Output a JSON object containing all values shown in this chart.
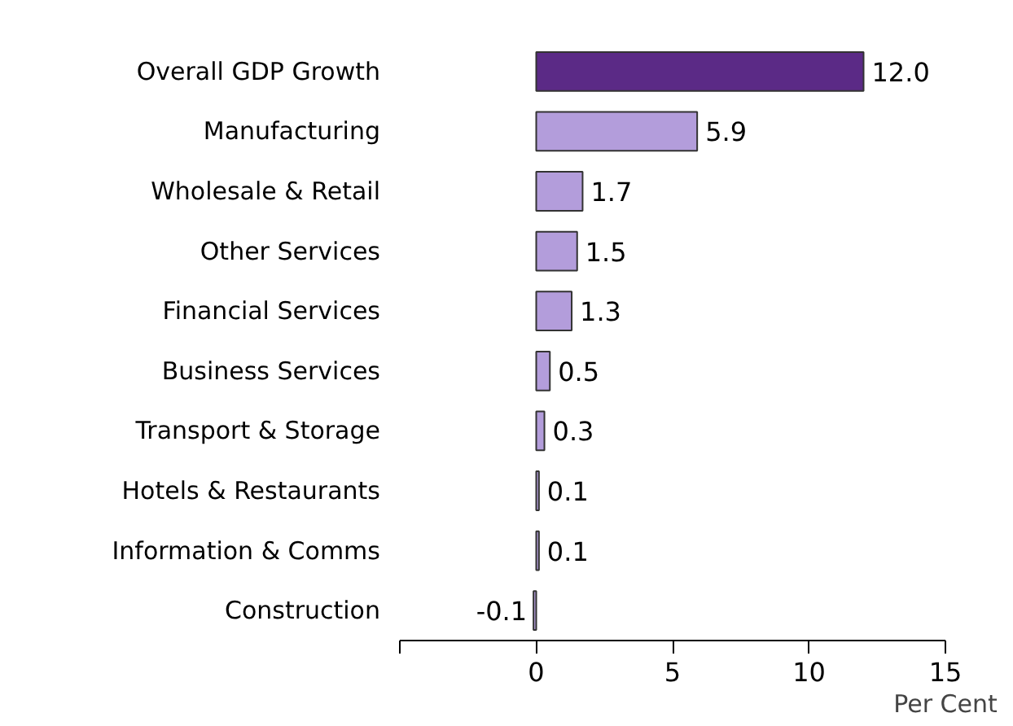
{
  "chart_data": {
    "type": "bar",
    "orientation": "horizontal",
    "xlabel": "Per Cent",
    "categories": [
      "Overall GDP Growth",
      "Manufacturing",
      "Wholesale & Retail",
      "Other Services",
      "Financial Services",
      "Business Services",
      "Transport & Storage",
      "Hotels & Restaurants",
      "Information & Comms",
      "Construction"
    ],
    "values": [
      12.0,
      5.9,
      1.7,
      1.5,
      1.3,
      0.5,
      0.3,
      0.1,
      0.1,
      -0.1
    ],
    "colors": [
      "#5b2a86",
      "#b39ddb",
      "#b39ddb",
      "#b39ddb",
      "#b39ddb",
      "#b39ddb",
      "#b39ddb",
      "#b39ddb",
      "#b39ddb",
      "#b39ddb"
    ],
    "value_labels": [
      "12.0",
      "5.9",
      "1.7",
      "1.5",
      "1.3",
      "0.5",
      "0.3",
      "0.1",
      "0.1",
      "-0.1"
    ],
    "xlim": [
      -5,
      15
    ],
    "xticks": [
      {
        "value": -5,
        "label": null
      },
      0,
      5,
      10,
      15
    ],
    "grid": false
  }
}
